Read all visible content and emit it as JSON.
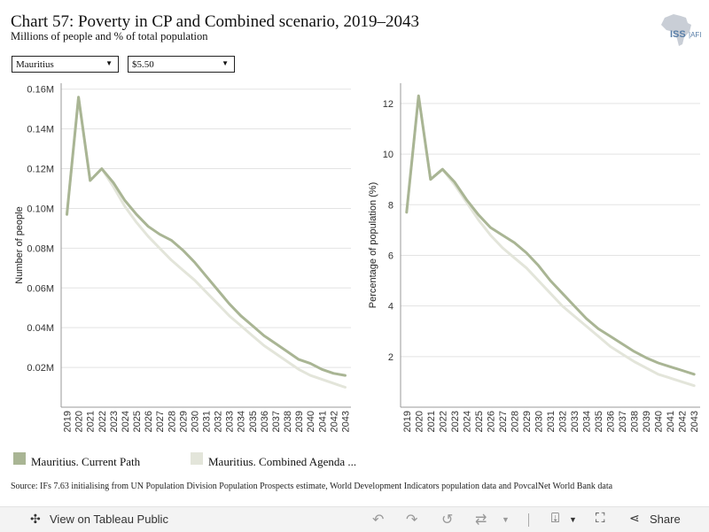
{
  "header": {
    "title": "Chart 57: Poverty in CP and Combined scenario, 2019–2043",
    "subtitle": "Millions of people and % of total population",
    "logo_text": "ISS|AFI"
  },
  "filters": {
    "country": "Mauritius",
    "poverty_line": "$5.50"
  },
  "colors": {
    "current_path": "#a9b594",
    "combined_agenda": "#e3e5da",
    "gridline": "#e3e3e3",
    "axis": "#999999"
  },
  "legend": [
    {
      "label": "Mauritius. Current Path",
      "color": "#a9b594"
    },
    {
      "label": "Mauritius. Combined Agenda ...",
      "color": "#e3e5da"
    }
  ],
  "source": "Source: IFs 7.63 initialising from UN Population Division Population Prospects estimate, World Development Indicators population data and PovcalNet World Bank data",
  "toolbar": {
    "view_label": "View on Tableau Public",
    "share_label": "Share"
  },
  "chart_data": [
    {
      "type": "line",
      "ylabel": "Number of people",
      "ylim": [
        0,
        0.163
      ],
      "yticks": [
        0.02,
        0.04,
        0.06,
        0.08,
        0.1,
        0.12,
        0.14,
        0.16
      ],
      "ytick_labels": [
        "0.02M",
        "0.04M",
        "0.06M",
        "0.08M",
        "0.10M",
        "0.12M",
        "0.14M",
        "0.16M"
      ],
      "x": [
        "2019",
        "2020",
        "2021",
        "2022",
        "2023",
        "2024",
        "2025",
        "2026",
        "2027",
        "2028",
        "2029",
        "2030",
        "2031",
        "2032",
        "2033",
        "2034",
        "2035",
        "2036",
        "2037",
        "2038",
        "2039",
        "2040",
        "2041",
        "2042",
        "2043"
      ],
      "grid": true,
      "series": [
        {
          "name": "Mauritius. Current Path",
          "values": [
            0.097,
            0.156,
            0.114,
            0.12,
            0.113,
            0.104,
            0.097,
            0.091,
            0.087,
            0.084,
            0.079,
            0.073,
            0.066,
            0.059,
            0.052,
            0.046,
            0.041,
            0.036,
            0.032,
            0.028,
            0.024,
            0.022,
            0.019,
            0.017,
            0.016
          ]
        },
        {
          "name": "Mauritius. Combined Agenda ...",
          "values": [
            0.097,
            0.156,
            0.114,
            0.12,
            0.111,
            0.101,
            0.093,
            0.086,
            0.08,
            0.074,
            0.069,
            0.064,
            0.058,
            0.052,
            0.046,
            0.041,
            0.036,
            0.031,
            0.027,
            0.023,
            0.019,
            0.016,
            0.014,
            0.012,
            0.01
          ]
        }
      ]
    },
    {
      "type": "line",
      "ylabel": "Percentage of population (%)",
      "ylim": [
        0,
        12.8
      ],
      "yticks": [
        2,
        4,
        6,
        8,
        10,
        12
      ],
      "ytick_labels": [
        "2",
        "4",
        "6",
        "8",
        "10",
        "12"
      ],
      "x": [
        "2019",
        "2020",
        "2021",
        "2022",
        "2023",
        "2024",
        "2025",
        "2026",
        "2027",
        "2028",
        "2029",
        "2030",
        "2031",
        "2032",
        "2033",
        "2034",
        "2035",
        "2036",
        "2037",
        "2038",
        "2039",
        "2040",
        "2041",
        "2042",
        "2043"
      ],
      "grid": true,
      "series": [
        {
          "name": "Mauritius. Current Path",
          "values": [
            7.7,
            12.3,
            9.0,
            9.4,
            8.9,
            8.2,
            7.6,
            7.1,
            6.8,
            6.5,
            6.1,
            5.6,
            5.0,
            4.5,
            4.0,
            3.5,
            3.1,
            2.8,
            2.5,
            2.2,
            1.95,
            1.75,
            1.6,
            1.45,
            1.3
          ]
        },
        {
          "name": "Mauritius. Combined Agenda ...",
          "values": [
            7.7,
            12.3,
            9.0,
            9.4,
            8.8,
            8.1,
            7.4,
            6.8,
            6.3,
            5.9,
            5.5,
            5.0,
            4.5,
            4.0,
            3.6,
            3.2,
            2.8,
            2.4,
            2.1,
            1.8,
            1.55,
            1.3,
            1.15,
            1.0,
            0.85
          ]
        }
      ]
    }
  ]
}
